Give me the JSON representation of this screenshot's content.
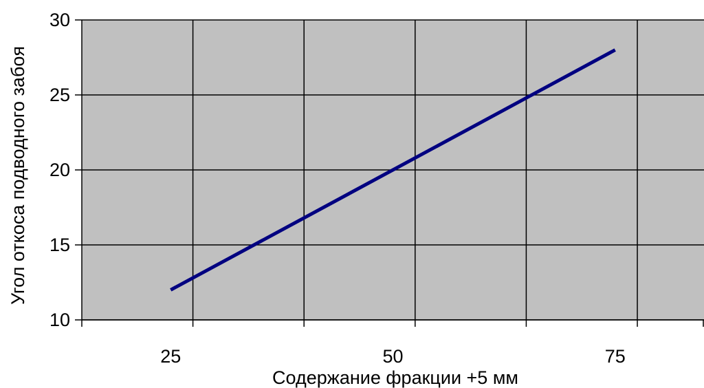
{
  "chart_data": {
    "type": "line",
    "title": "",
    "xlabel": "Содержание фракции +5 мм",
    "ylabel": "Угол откоса подводного забоя",
    "xlim": [
      15,
      85
    ],
    "ylim": [
      10,
      30
    ],
    "x_ticks": [
      25,
      50,
      75
    ],
    "y_ticks": [
      10,
      15,
      20,
      25,
      30
    ],
    "grid": true,
    "legend": "none",
    "series": [
      {
        "x": [
          25,
          75
        ],
        "y": [
          12,
          28
        ]
      }
    ],
    "colors": {
      "plot_background": "#c0c0c0",
      "line": "#000080",
      "grid": "#000000",
      "page_background": "#ffffff"
    }
  }
}
